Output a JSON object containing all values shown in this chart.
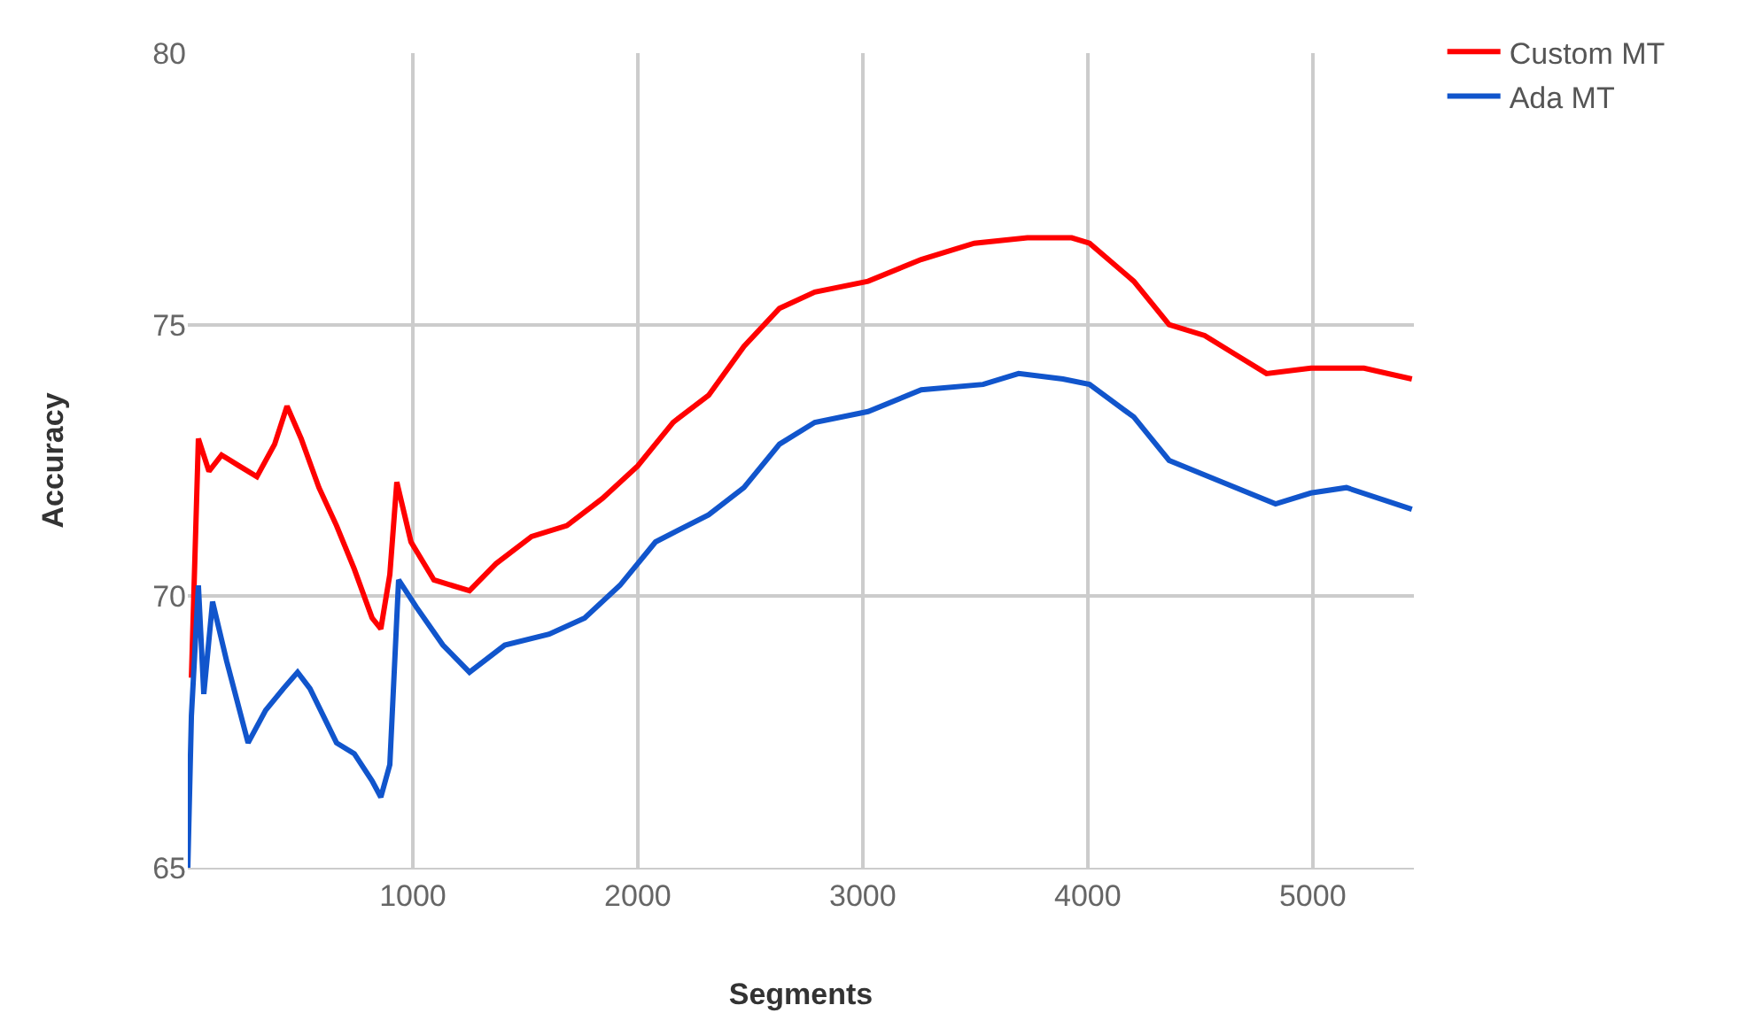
{
  "chart_data": {
    "type": "line",
    "xlabel": "Segments",
    "ylabel": "Accuracy",
    "xlim": [
      0,
      5450
    ],
    "xticks": [
      1000,
      2000,
      3000,
      4000,
      5000
    ],
    "ylim": [
      65,
      80
    ],
    "yticks": [
      65,
      70,
      75,
      80
    ],
    "grid": true,
    "legend": "top right",
    "marker": "none",
    "line_style": "solid",
    "series": [
      {
        "name": "Custom MT",
        "color": "#ff0000",
        "x": [
          16,
          47,
          94,
          150,
          228,
          307,
          386,
          441,
          504,
          583,
          661,
          740,
          819,
          858,
          898,
          929,
          992,
          1094,
          1252,
          1370,
          1528,
          1685,
          1843,
          2000,
          2157,
          2315,
          2472,
          2630,
          2787,
          3024,
          3260,
          3496,
          3732,
          3929,
          4008,
          4205,
          4362,
          4520,
          4677,
          4795,
          4992,
          5228,
          5441
        ],
        "values": [
          68.5,
          72.9,
          72.3,
          72.6,
          72.4,
          72.2,
          72.8,
          73.5,
          72.9,
          72.0,
          71.3,
          70.5,
          69.6,
          69.4,
          70.4,
          72.1,
          71.0,
          70.3,
          70.1,
          70.6,
          71.1,
          71.3,
          71.8,
          72.4,
          73.2,
          73.7,
          74.6,
          75.3,
          75.6,
          75.8,
          76.2,
          76.5,
          76.6,
          76.6,
          76.5,
          75.8,
          75.0,
          74.8,
          74.4,
          74.1,
          74.2,
          74.2,
          74.0
        ]
      },
      {
        "name": "Ada MT",
        "color": "#1155cc",
        "x": [
          0,
          16,
          47,
          71,
          110,
          173,
          268,
          346,
          425,
          488,
          543,
          661,
          740,
          819,
          858,
          898,
          937,
          1016,
          1134,
          1252,
          1409,
          1606,
          1764,
          1921,
          2079,
          2315,
          2472,
          2630,
          2787,
          3024,
          3260,
          3535,
          3693,
          3890,
          4008,
          4205,
          4362,
          4598,
          4835,
          4992,
          5150,
          5441
        ],
        "values": [
          65.0,
          67.8,
          70.2,
          68.2,
          69.9,
          68.8,
          67.3,
          67.9,
          68.3,
          68.6,
          68.3,
          67.3,
          67.1,
          66.6,
          66.3,
          66.9,
          70.3,
          69.8,
          69.1,
          68.6,
          69.1,
          69.3,
          69.6,
          70.2,
          71.0,
          71.5,
          72.0,
          72.8,
          73.2,
          73.4,
          73.8,
          73.9,
          74.1,
          74.0,
          73.9,
          73.3,
          72.5,
          72.1,
          71.7,
          71.9,
          72.0,
          71.6
        ]
      }
    ]
  }
}
